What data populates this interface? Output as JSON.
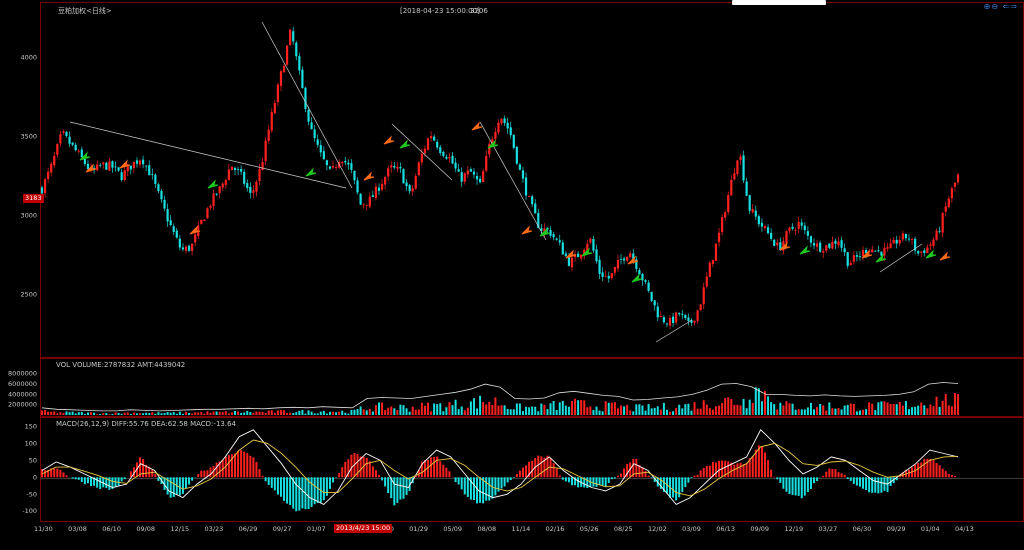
{
  "header": {
    "instrument": "豆粕加权<日线>",
    "datetime": "[2018-04-23 15:00:00]",
    "price": "3206"
  },
  "zoom_icons": [
    "zoom-in-icon",
    "zoom-out-icon",
    "arrow-left-icon",
    "arrow-right-icon"
  ],
  "zoom_label": "⊕⊖ ⇐⇒",
  "last_price_badge": "3183",
  "cursor_time_badge": "2013/4/23 15:00",
  "colors": {
    "up": "#ff2020",
    "down": "#18e0e0",
    "frame": "#8b0000",
    "text": "#c8c8c8",
    "ma": "#ffffff",
    "diff": "#ffffff",
    "dea": "#e8c840",
    "arrow_up_orange": "#ff6a1a",
    "arrow_down_green": "#1ec81e"
  },
  "chart_data": [
    {
      "type": "candlestick",
      "title": "",
      "y_ticks": [
        "4000",
        "3500",
        "3000",
        "2500"
      ],
      "ylim": [
        2150,
        4300
      ],
      "x_ticks": [
        "11/30",
        "03/08",
        "06/10",
        "09/08",
        "12/15",
        "03/23",
        "06/29",
        "09/27",
        "01/07",
        "04/",
        "10/30",
        "01/29",
        "05/09",
        "08/08",
        "11/14",
        "02/16",
        "05/26",
        "08/25",
        "12/02",
        "03/09",
        "06/13",
        "09/09",
        "12/19",
        "03/27",
        "06/30",
        "09/29",
        "01/04",
        "04/13"
      ],
      "close_path": [
        3170,
        3320,
        3520,
        3440,
        3360,
        3270,
        3320,
        3310,
        3250,
        3320,
        3370,
        3250,
        3080,
        2920,
        2780,
        2800,
        2960,
        3090,
        3180,
        3320,
        3250,
        3120,
        3310,
        3610,
        3890,
        4170,
        3840,
        3540,
        3380,
        3260,
        3380,
        3290,
        3070,
        3100,
        3200,
        3300,
        3280,
        3120,
        3360,
        3520,
        3420,
        3360,
        3230,
        3280,
        3190,
        3460,
        3640,
        3530,
        3280,
        3080,
        2920,
        2900,
        2810,
        2700,
        2760,
        2860,
        2640,
        2600,
        2710,
        2780,
        2650,
        2500,
        2360,
        2320,
        2380,
        2300,
        2420,
        2660,
        2880,
        3150,
        3420,
        3050,
        2960,
        2880,
        2790,
        2900,
        2950,
        2860,
        2800,
        2810,
        2850,
        2700,
        2740,
        2800,
        2770,
        2780,
        2850,
        2870,
        2760,
        2800,
        2890,
        3100,
        3250
      ],
      "extremes": {
        "high": 4170,
        "low": 2320
      }
    },
    {
      "type": "bar",
      "title": "VOL  VOLUME:2787832  AMT:4439042",
      "y_ticks": [
        "8000000",
        "6000000",
        "4000000",
        "2000000"
      ],
      "ylim": [
        0,
        9500000
      ],
      "amount_path": [
        1400000,
        1100000,
        1000000,
        900000,
        800000,
        800000,
        1000000,
        900000,
        800000,
        900000,
        1000000,
        1100000,
        1100000,
        1200000,
        1300000,
        1200000,
        1400000,
        1500000,
        1400000,
        1600000,
        1500000,
        1400000,
        3200000,
        3400000,
        3300000,
        3200000,
        3600000,
        4000000,
        4400000,
        5000000,
        6000000,
        5400000,
        3200000,
        3100000,
        3300000,
        4300000,
        4600000,
        4200000,
        3800000,
        3600000,
        2900000,
        3000000,
        3300000,
        3500000,
        4000000,
        4800000,
        6000000,
        6100000,
        5500000,
        4000000,
        4000000,
        3800000,
        3700000,
        3900000,
        3700000,
        3600000,
        3700000,
        3800000,
        4000000,
        4500000,
        6000000,
        6300000,
        6100000
      ]
    },
    {
      "type": "line",
      "title": "MACD(26,12,9)  DIFF:55.76  DEA:62.58  MACD:-13.64",
      "y_ticks": [
        "150",
        "100",
        "50",
        "0",
        "-50",
        "-100"
      ],
      "ylim": [
        -120,
        160
      ],
      "series": [
        {
          "name": "DIFF",
          "values": [
            20,
            45,
            30,
            10,
            -10,
            -30,
            -20,
            40,
            20,
            -40,
            -60,
            -20,
            10,
            60,
            120,
            140,
            90,
            40,
            -20,
            -60,
            -80,
            -40,
            30,
            70,
            50,
            -20,
            -30,
            40,
            80,
            60,
            10,
            -40,
            -60,
            -50,
            -20,
            30,
            60,
            20,
            -10,
            -30,
            -40,
            -20,
            40,
            20,
            -30,
            -80,
            -60,
            -20,
            20,
            40,
            60,
            140,
            100,
            50,
            10,
            30,
            60,
            50,
            20,
            -10,
            -20,
            10,
            40,
            80,
            70,
            60
          ]
        },
        {
          "name": "DEA",
          "values": [
            10,
            30,
            30,
            18,
            5,
            -12,
            -18,
            10,
            15,
            -10,
            -35,
            -25,
            -5,
            30,
            80,
            110,
            100,
            70,
            30,
            -15,
            -45,
            -45,
            -5,
            40,
            50,
            20,
            -5,
            15,
            50,
            55,
            35,
            0,
            -30,
            -40,
            -30,
            0,
            30,
            25,
            5,
            -15,
            -28,
            -25,
            10,
            15,
            -10,
            -45,
            -55,
            -35,
            -5,
            20,
            40,
            90,
            100,
            75,
            40,
            35,
            45,
            48,
            35,
            15,
            0,
            5,
            20,
            50,
            60,
            62
          ]
        }
      ]
    }
  ]
}
